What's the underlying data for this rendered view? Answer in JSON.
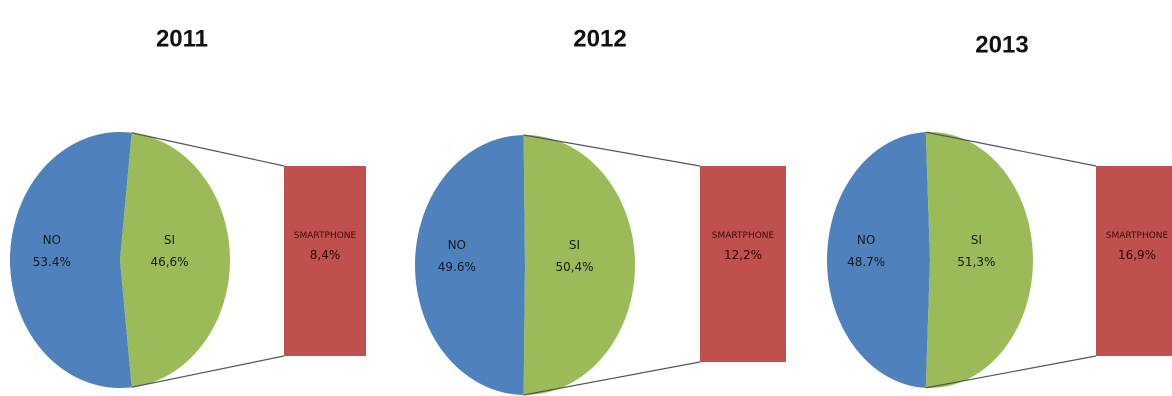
{
  "chart_data": [
    {
      "type": "pie",
      "title": "2011",
      "slices": [
        {
          "label": "NO",
          "value": 53.4,
          "display": "53.4%",
          "color": "#4f81bd"
        },
        {
          "label": "SI",
          "value": 46.6,
          "display": "46,6%",
          "color": "#9bbb59"
        }
      ],
      "breakout": {
        "label": "SMARTPHONE",
        "value": 8.4,
        "display": "8,4%",
        "color": "#c0504d"
      }
    },
    {
      "type": "pie",
      "title": "2012",
      "slices": [
        {
          "label": "NO",
          "value": 49.6,
          "display": "49.6%",
          "color": "#4f81bd"
        },
        {
          "label": "SI",
          "value": 50.4,
          "display": "50,4%",
          "color": "#9bbb59"
        }
      ],
      "breakout": {
        "label": "SMARTPHONE",
        "value": 12.2,
        "display": "12,2%",
        "color": "#c0504d"
      }
    },
    {
      "type": "pie",
      "title": "2013",
      "slices": [
        {
          "label": "NO",
          "value": 48.7,
          "display": "48.7%",
          "color": "#4f81bd"
        },
        {
          "label": "SI",
          "value": 51.3,
          "display": "51,3%",
          "color": "#9bbb59"
        }
      ],
      "breakout": {
        "label": "SMARTPHONE",
        "value": 16.9,
        "display": "16,9%",
        "color": "#c0504d"
      }
    }
  ]
}
